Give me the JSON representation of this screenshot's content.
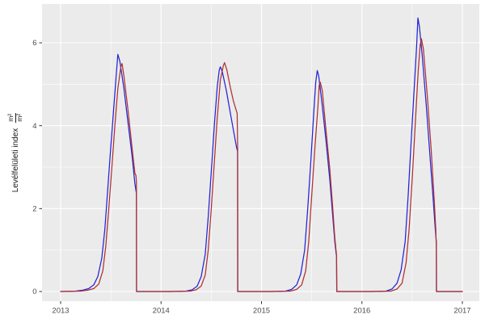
{
  "chart_data": {
    "type": "line",
    "title": "",
    "xlabel": "",
    "ylabel": "Levélfelületi index m²/m²",
    "ylabel_text": "Levélfelületi index",
    "ylabel_unit_numerator": "m²",
    "ylabel_unit_denominator": "m²",
    "legend_position": "none",
    "grid": true,
    "x_axis": {
      "ticks": [
        2013,
        2014,
        2015,
        2016,
        2017
      ],
      "tick_labels": [
        "2013",
        "2014",
        "2015",
        "2016",
        "2017"
      ],
      "minor_ticks": [
        2013.5,
        2014.5,
        2015.5,
        2016.5
      ],
      "range": [
        2012.815,
        2017.169
      ]
    },
    "y_axis": {
      "ticks": [
        0,
        2,
        4,
        6
      ],
      "tick_labels": [
        "0",
        "2",
        "4",
        "6"
      ],
      "minor_ticks": [
        1,
        3,
        5
      ],
      "range": [
        -0.234,
        6.935
      ]
    },
    "colors": {
      "panel_background": "#ebebeb",
      "grid_major": "#ffffff",
      "grid_minor": "#ffffff",
      "tick_text": "#4d4d4d",
      "tick_mark": "#333333",
      "axis_title": "#1a1a1a",
      "series_blue": "#2424d6",
      "series_red": "#b03030"
    },
    "series": [
      {
        "name": "blue",
        "color": "#2424d6",
        "points": [
          [
            2013.0,
            0
          ],
          [
            2013.15,
            0.01
          ],
          [
            2013.22,
            0.03
          ],
          [
            2013.28,
            0.07
          ],
          [
            2013.33,
            0.16
          ],
          [
            2013.37,
            0.36
          ],
          [
            2013.41,
            0.8
          ],
          [
            2013.44,
            1.5
          ],
          [
            2013.47,
            2.5
          ],
          [
            2013.5,
            3.5
          ],
          [
            2013.53,
            4.45
          ],
          [
            2013.555,
            5.25
          ],
          [
            2013.57,
            5.72
          ],
          [
            2013.59,
            5.55
          ],
          [
            2013.63,
            4.9
          ],
          [
            2013.67,
            4.1
          ],
          [
            2013.71,
            3.3
          ],
          [
            2013.74,
            2.6
          ],
          [
            2013.755,
            2.36
          ],
          [
            2013.756,
            0
          ],
          [
            2013.9,
            0
          ],
          [
            2014.1,
            0
          ],
          [
            2014.25,
            0.01
          ],
          [
            2014.31,
            0.04
          ],
          [
            2014.36,
            0.13
          ],
          [
            2014.4,
            0.36
          ],
          [
            2014.44,
            0.9
          ],
          [
            2014.47,
            1.8
          ],
          [
            2014.5,
            2.9
          ],
          [
            2014.53,
            4.0
          ],
          [
            2014.56,
            4.95
          ],
          [
            2014.58,
            5.35
          ],
          [
            2014.59,
            5.42
          ],
          [
            2014.61,
            5.3
          ],
          [
            2014.65,
            4.85
          ],
          [
            2014.69,
            4.3
          ],
          [
            2014.72,
            3.9
          ],
          [
            2014.75,
            3.5
          ],
          [
            2014.762,
            3.38
          ],
          [
            2014.763,
            0
          ],
          [
            2014.9,
            0
          ],
          [
            2015.1,
            0
          ],
          [
            2015.24,
            0.01
          ],
          [
            2015.3,
            0.05
          ],
          [
            2015.35,
            0.16
          ],
          [
            2015.39,
            0.42
          ],
          [
            2015.43,
            1.0
          ],
          [
            2015.46,
            2.0
          ],
          [
            2015.49,
            3.1
          ],
          [
            2015.52,
            4.3
          ],
          [
            2015.54,
            5.05
          ],
          [
            2015.555,
            5.33
          ],
          [
            2015.57,
            5.2
          ],
          [
            2015.6,
            4.6
          ],
          [
            2015.64,
            3.7
          ],
          [
            2015.68,
            2.7
          ],
          [
            2015.71,
            1.8
          ],
          [
            2015.73,
            1.2
          ],
          [
            2015.744,
            0.9
          ],
          [
            2015.748,
            0.87
          ],
          [
            2015.749,
            0
          ],
          [
            2015.9,
            0
          ],
          [
            2016.1,
            0
          ],
          [
            2016.24,
            0.01
          ],
          [
            2016.3,
            0.06
          ],
          [
            2016.35,
            0.2
          ],
          [
            2016.39,
            0.52
          ],
          [
            2016.43,
            1.2
          ],
          [
            2016.46,
            2.3
          ],
          [
            2016.49,
            3.6
          ],
          [
            2016.52,
            4.9
          ],
          [
            2016.545,
            5.95
          ],
          [
            2016.557,
            6.6
          ],
          [
            2016.572,
            6.4
          ],
          [
            2016.6,
            5.7
          ],
          [
            2016.64,
            4.5
          ],
          [
            2016.68,
            3.2
          ],
          [
            2016.71,
            2.2
          ],
          [
            2016.73,
            1.5
          ],
          [
            2016.741,
            1.2
          ],
          [
            2016.742,
            0
          ],
          [
            2016.9,
            0
          ],
          [
            2017.0,
            0
          ]
        ]
      },
      {
        "name": "red",
        "color": "#b03030",
        "points": [
          [
            2013.0,
            0
          ],
          [
            2013.2,
            0.01
          ],
          [
            2013.27,
            0.03
          ],
          [
            2013.33,
            0.07
          ],
          [
            2013.38,
            0.18
          ],
          [
            2013.42,
            0.5
          ],
          [
            2013.45,
            1.1
          ],
          [
            2013.48,
            2.0
          ],
          [
            2013.51,
            3.0
          ],
          [
            2013.54,
            4.0
          ],
          [
            2013.57,
            4.9
          ],
          [
            2013.6,
            5.42
          ],
          [
            2013.612,
            5.5
          ],
          [
            2013.63,
            5.2
          ],
          [
            2013.67,
            4.4
          ],
          [
            2013.71,
            3.5
          ],
          [
            2013.74,
            2.85
          ],
          [
            2013.75,
            2.8
          ],
          [
            2013.755,
            2.62
          ],
          [
            2013.757,
            0
          ],
          [
            2013.9,
            0
          ],
          [
            2014.1,
            0
          ],
          [
            2014.29,
            0.01
          ],
          [
            2014.35,
            0.04
          ],
          [
            2014.4,
            0.13
          ],
          [
            2014.44,
            0.4
          ],
          [
            2014.47,
            1.0
          ],
          [
            2014.5,
            2.0
          ],
          [
            2014.53,
            3.1
          ],
          [
            2014.56,
            4.2
          ],
          [
            2014.59,
            5.1
          ],
          [
            2014.62,
            5.45
          ],
          [
            2014.632,
            5.52
          ],
          [
            2014.655,
            5.35
          ],
          [
            2014.69,
            4.92
          ],
          [
            2014.72,
            4.6
          ],
          [
            2014.75,
            4.36
          ],
          [
            2014.758,
            4.3
          ],
          [
            2014.763,
            3.42
          ],
          [
            2014.764,
            0
          ],
          [
            2014.9,
            0
          ],
          [
            2015.1,
            0
          ],
          [
            2015.29,
            0.01
          ],
          [
            2015.35,
            0.05
          ],
          [
            2015.4,
            0.16
          ],
          [
            2015.44,
            0.5
          ],
          [
            2015.47,
            1.2
          ],
          [
            2015.5,
            2.3
          ],
          [
            2015.53,
            3.4
          ],
          [
            2015.56,
            4.4
          ],
          [
            2015.575,
            4.98
          ],
          [
            2015.585,
            5.05
          ],
          [
            2015.605,
            4.85
          ],
          [
            2015.64,
            3.95
          ],
          [
            2015.68,
            2.95
          ],
          [
            2015.71,
            2.0
          ],
          [
            2015.73,
            1.3
          ],
          [
            2015.742,
            1.0
          ],
          [
            2015.747,
            0.88
          ],
          [
            2015.75,
            0
          ],
          [
            2015.9,
            0
          ],
          [
            2016.1,
            0
          ],
          [
            2016.29,
            0.01
          ],
          [
            2016.35,
            0.06
          ],
          [
            2016.4,
            0.2
          ],
          [
            2016.44,
            0.7
          ],
          [
            2016.47,
            1.5
          ],
          [
            2016.5,
            2.7
          ],
          [
            2016.53,
            4.0
          ],
          [
            2016.56,
            5.3
          ],
          [
            2016.58,
            5.95
          ],
          [
            2016.592,
            6.1
          ],
          [
            2016.612,
            5.85
          ],
          [
            2016.65,
            4.75
          ],
          [
            2016.69,
            3.4
          ],
          [
            2016.72,
            2.2
          ],
          [
            2016.735,
            1.5
          ],
          [
            2016.74,
            1.12
          ],
          [
            2016.742,
            1.05
          ],
          [
            2016.743,
            0
          ],
          [
            2016.9,
            0
          ],
          [
            2017.0,
            0
          ]
        ]
      }
    ]
  }
}
